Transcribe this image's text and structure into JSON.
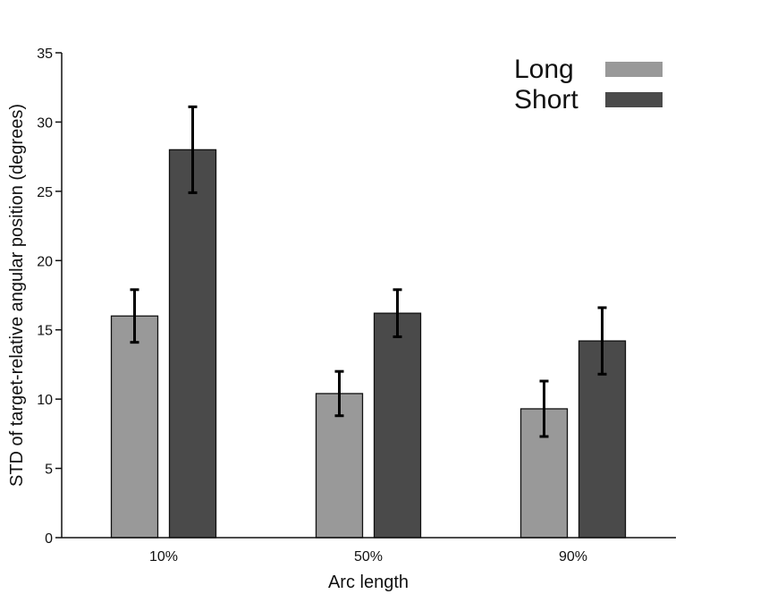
{
  "chart_data": {
    "type": "bar",
    "categories": [
      "10%",
      "50%",
      "90%"
    ],
    "series": [
      {
        "name": "Long",
        "color": "#999999",
        "values": [
          16.0,
          10.4,
          9.3
        ],
        "error": [
          1.9,
          1.6,
          2.0
        ]
      },
      {
        "name": "Short",
        "color": "#4a4a4a",
        "values": [
          28.0,
          16.2,
          14.2
        ],
        "error": [
          3.1,
          1.7,
          2.4
        ]
      }
    ],
    "xlabel": "Arc length",
    "ylabel": "STD of target-relative angular position (degrees)",
    "ylim": [
      0,
      35
    ],
    "yticks": [
      0,
      5,
      10,
      15,
      20,
      25,
      30,
      35
    ],
    "grid": false,
    "legend_position": "top-right"
  }
}
